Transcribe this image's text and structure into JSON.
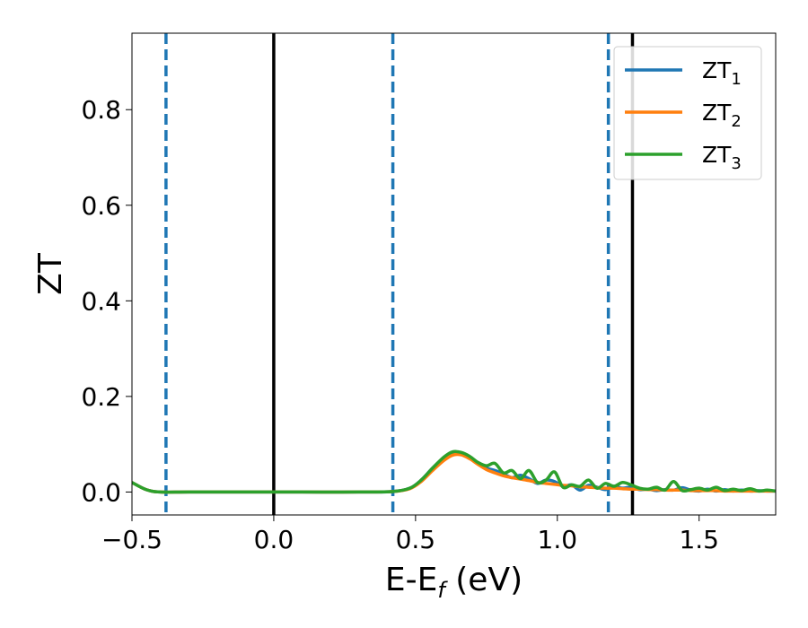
{
  "chart_data": {
    "type": "line",
    "xlabel": "E-E",
    "xlabel_sub": "f",
    "xlabel_unit": " (eV)",
    "ylabel": "ZT",
    "xlim": [
      -0.5,
      1.77
    ],
    "ylim": [
      -0.048,
      0.96
    ],
    "xticks": [
      -0.5,
      0.0,
      0.5,
      1.0,
      1.5
    ],
    "xtick_labels": [
      "−0.5",
      "0.0",
      "0.5",
      "1.0",
      "1.5"
    ],
    "yticks": [
      0.0,
      0.2,
      0.4,
      0.6,
      0.8
    ],
    "ytick_labels": [
      "0.0",
      "0.2",
      "0.4",
      "0.6",
      "0.8"
    ],
    "grid": false,
    "legend_position": "top-right",
    "vlines": [
      {
        "x": -0.38,
        "style": "dashed",
        "color": "#1f77b4"
      },
      {
        "x": 0.0,
        "style": "solid",
        "color": "#000000"
      },
      {
        "x": 0.42,
        "style": "dashed",
        "color": "#1f77b4"
      },
      {
        "x": 1.18,
        "style": "dashed",
        "color": "#1f77b4"
      },
      {
        "x": 1.265,
        "style": "solid",
        "color": "#000000"
      }
    ],
    "series": [
      {
        "name": "ZT",
        "name_sub": "1",
        "color": "#1f77b4",
        "x": [
          -0.5,
          -0.45,
          -0.4,
          -0.3,
          -0.1,
          0.1,
          0.3,
          0.42,
          0.48,
          0.52,
          0.56,
          0.6,
          0.63,
          0.66,
          0.69,
          0.72,
          0.75,
          0.78,
          0.81,
          0.84,
          0.87,
          0.9,
          0.93,
          0.96,
          0.99,
          1.02,
          1.05,
          1.08,
          1.11,
          1.14,
          1.17,
          1.2,
          1.23,
          1.26,
          1.29,
          1.32,
          1.35,
          1.38,
          1.41,
          1.44,
          1.47,
          1.5,
          1.53,
          1.56,
          1.59,
          1.62,
          1.65,
          1.68,
          1.71,
          1.74,
          1.77
        ],
        "y": [
          0.02,
          0.005,
          0.0,
          0.0,
          0.0,
          0.0,
          0.0,
          0.001,
          0.008,
          0.025,
          0.05,
          0.072,
          0.083,
          0.082,
          0.074,
          0.06,
          0.05,
          0.045,
          0.038,
          0.03,
          0.035,
          0.028,
          0.018,
          0.025,
          0.022,
          0.012,
          0.015,
          0.004,
          0.014,
          0.01,
          0.005,
          0.012,
          0.008,
          0.01,
          0.005,
          0.006,
          0.003,
          0.005,
          0.004,
          0.009,
          0.004,
          0.002,
          0.006,
          0.002,
          0.005,
          0.002,
          0.004,
          0.002,
          0.003,
          0.002,
          0.002
        ]
      },
      {
        "name": "ZT",
        "name_sub": "2",
        "color": "#ff7f0e",
        "x": [
          -0.5,
          -0.45,
          -0.4,
          -0.3,
          -0.1,
          0.1,
          0.3,
          0.42,
          0.48,
          0.52,
          0.56,
          0.6,
          0.63,
          0.66,
          0.69,
          0.72,
          0.75,
          0.78,
          0.81,
          0.84,
          0.87,
          0.9,
          0.93,
          0.96,
          0.99,
          1.02,
          1.05,
          1.08,
          1.11,
          1.14,
          1.17,
          1.2,
          1.23,
          1.26,
          1.29,
          1.32,
          1.35,
          1.38,
          1.41,
          1.44,
          1.47,
          1.5,
          1.53,
          1.56,
          1.59,
          1.62,
          1.65,
          1.68,
          1.71,
          1.74,
          1.77
        ],
        "y": [
          0.02,
          0.005,
          0.0,
          0.0,
          0.0,
          0.0,
          0.0,
          0.001,
          0.007,
          0.022,
          0.045,
          0.066,
          0.077,
          0.078,
          0.07,
          0.058,
          0.047,
          0.04,
          0.034,
          0.03,
          0.027,
          0.024,
          0.02,
          0.018,
          0.016,
          0.014,
          0.013,
          0.011,
          0.01,
          0.009,
          0.008,
          0.008,
          0.007,
          0.006,
          0.006,
          0.005,
          0.005,
          0.004,
          0.004,
          0.004,
          0.003,
          0.003,
          0.003,
          0.003,
          0.002,
          0.002,
          0.002,
          0.002,
          0.002,
          0.002,
          0.002
        ]
      },
      {
        "name": "ZT",
        "name_sub": "3",
        "color": "#2ca02c",
        "x": [
          -0.5,
          -0.45,
          -0.4,
          -0.3,
          -0.1,
          0.1,
          0.3,
          0.42,
          0.48,
          0.52,
          0.56,
          0.6,
          0.63,
          0.66,
          0.69,
          0.72,
          0.75,
          0.78,
          0.81,
          0.84,
          0.87,
          0.9,
          0.93,
          0.96,
          0.99,
          1.02,
          1.05,
          1.08,
          1.11,
          1.14,
          1.17,
          1.2,
          1.23,
          1.26,
          1.29,
          1.32,
          1.35,
          1.38,
          1.41,
          1.44,
          1.47,
          1.5,
          1.53,
          1.56,
          1.59,
          1.62,
          1.65,
          1.68,
          1.71,
          1.74,
          1.77
        ],
        "y": [
          0.02,
          0.005,
          0.0,
          0.0,
          0.0,
          0.0,
          0.0,
          0.001,
          0.008,
          0.025,
          0.05,
          0.073,
          0.084,
          0.083,
          0.075,
          0.062,
          0.055,
          0.06,
          0.04,
          0.045,
          0.028,
          0.045,
          0.02,
          0.025,
          0.042,
          0.01,
          0.015,
          0.012,
          0.025,
          0.008,
          0.018,
          0.012,
          0.02,
          0.015,
          0.008,
          0.006,
          0.01,
          0.004,
          0.022,
          0.003,
          0.005,
          0.008,
          0.004,
          0.01,
          0.003,
          0.006,
          0.003,
          0.007,
          0.002,
          0.004,
          0.002
        ]
      }
    ]
  }
}
